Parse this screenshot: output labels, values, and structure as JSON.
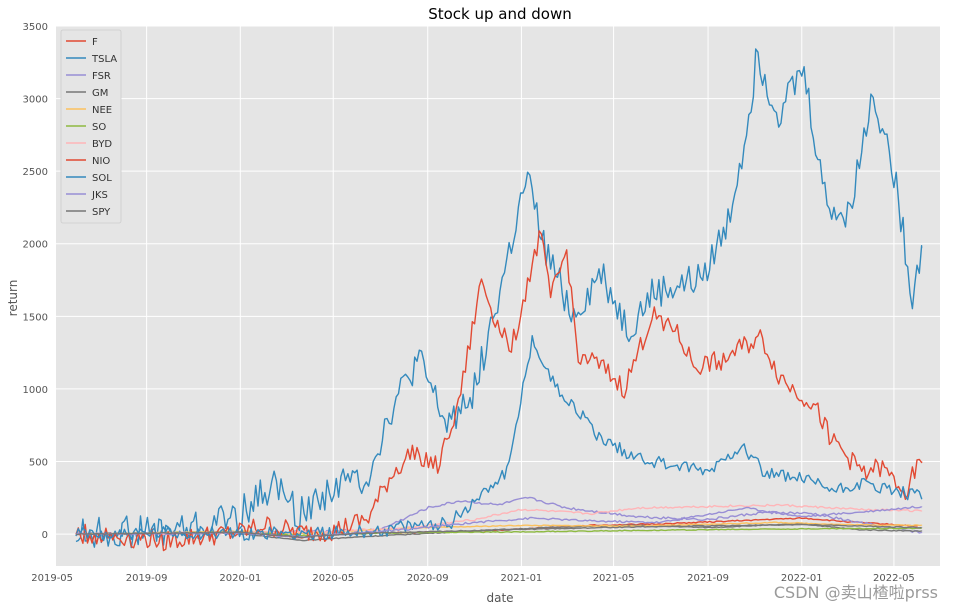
{
  "chart_data": {
    "type": "line",
    "title": "Stock up and down",
    "xlabel": "date",
    "ylabel": "return",
    "ylim": [
      -220,
      3500
    ],
    "yticks": [
      0,
      500,
      1000,
      1500,
      2000,
      2500,
      3000,
      3500
    ],
    "ytick_labels": [
      "0",
      "500",
      "1000",
      "1500",
      "2000",
      "2500",
      "3000",
      "3500"
    ],
    "xlim": [
      "2019-05-06",
      "2022-06-30"
    ],
    "xtick_labels": [
      "2019-05",
      "2019-09",
      "2020-01",
      "2020-05",
      "2020-09",
      "2021-01",
      "2021-05",
      "2021-09",
      "2022-01",
      "2022-05"
    ],
    "grid": true,
    "legend_position": "top-left",
    "series": [
      {
        "name": "F",
        "color": "#E24A33",
        "x": [
          "2019-06-01",
          "2019-09-01",
          "2020-01-01",
          "2020-03-20",
          "2020-05-01",
          "2020-08-01",
          "2020-11-01",
          "2021-01-01",
          "2021-04-01",
          "2021-07-01",
          "2021-10-01",
          "2022-01-01",
          "2022-03-01",
          "2022-06-01"
        ],
        "values": [
          0,
          5,
          15,
          -25,
          0,
          10,
          20,
          35,
          60,
          70,
          90,
          110,
          85,
          55
        ]
      },
      {
        "name": "TSLA",
        "color": "#348ABD",
        "x": [
          "2019-06-01",
          "2019-07-15",
          "2019-09-15",
          "2019-11-15",
          "2020-01-01",
          "2020-02-15",
          "2020-03-18",
          "2020-05-01",
          "2020-06-15",
          "2020-07-15",
          "2020-08-20",
          "2020-09-25",
          "2020-11-01",
          "2020-12-01",
          "2021-01-08",
          "2021-02-01",
          "2021-03-10",
          "2021-04-15",
          "2021-05-20",
          "2021-06-20",
          "2021-08-20",
          "2021-09-25",
          "2021-10-20",
          "2021-11-04",
          "2021-12-01",
          "2022-01-03",
          "2022-02-01",
          "2022-03-01",
          "2022-04-04",
          "2022-05-01",
          "2022-05-25",
          "2022-06-06"
        ],
        "values": [
          0,
          10,
          20,
          50,
          140,
          350,
          130,
          330,
          400,
          850,
          1200,
          750,
          1000,
          1600,
          2450,
          1950,
          1500,
          1800,
          1400,
          1650,
          1750,
          2100,
          2750,
          3300,
          2900,
          3200,
          2300,
          2150,
          3050,
          2500,
          1650,
          1970
        ]
      },
      {
        "name": "FSR",
        "color": "#988ED5",
        "x": [
          "2019-06-01",
          "2020-01-01",
          "2020-07-01",
          "2020-09-01",
          "2020-10-15",
          "2020-12-01",
          "2021-01-10",
          "2021-03-01",
          "2021-06-01",
          "2021-09-01",
          "2021-11-15",
          "2022-01-15",
          "2022-03-15",
          "2022-06-06"
        ],
        "values": [
          0,
          5,
          30,
          180,
          230,
          200,
          250,
          180,
          120,
          100,
          150,
          140,
          80,
          10
        ]
      },
      {
        "name": "GM",
        "color": "#777777",
        "x": [
          "2019-06-01",
          "2020-01-01",
          "2020-03-20",
          "2020-06-01",
          "2020-12-01",
          "2021-03-01",
          "2021-06-01",
          "2021-09-01",
          "2022-01-01",
          "2022-03-15",
          "2022-06-06"
        ],
        "values": [
          0,
          5,
          -45,
          -20,
          30,
          50,
          60,
          45,
          70,
          30,
          20
        ]
      },
      {
        "name": "NEE",
        "color": "#FBC15E",
        "x": [
          "2019-06-01",
          "2020-01-01",
          "2020-03-20",
          "2020-08-01",
          "2021-01-01",
          "2021-06-01",
          "2021-12-01",
          "2022-03-01",
          "2022-06-06"
        ],
        "values": [
          0,
          20,
          5,
          40,
          60,
          55,
          80,
          65,
          60
        ]
      },
      {
        "name": "SO",
        "color": "#8EBA42",
        "x": [
          "2019-06-01",
          "2020-01-01",
          "2020-03-20",
          "2020-08-01",
          "2021-01-01",
          "2021-06-01",
          "2021-12-01",
          "2022-06-06"
        ],
        "values": [
          0,
          15,
          -10,
          10,
          15,
          25,
          35,
          40
        ]
      },
      {
        "name": "BYD",
        "color": "#FFB5B8",
        "x": [
          "2019-06-01",
          "2020-01-01",
          "2020-05-01",
          "2020-08-01",
          "2020-11-01",
          "2021-01-01",
          "2021-04-01",
          "2021-06-01",
          "2021-09-01",
          "2021-12-01",
          "2022-03-15",
          "2022-06-06"
        ],
        "values": [
          0,
          10,
          20,
          40,
          100,
          170,
          140,
          180,
          190,
          200,
          170,
          160
        ]
      },
      {
        "name": "NIO",
        "color": "#E24A33",
        "x": [
          "2019-06-01",
          "2019-10-01",
          "2020-01-01",
          "2020-02-01",
          "2020-03-20",
          "2020-05-01",
          "2020-06-15",
          "2020-07-15",
          "2020-08-15",
          "2020-09-15",
          "2020-10-15",
          "2020-11-10",
          "2020-11-30",
          "2020-12-20",
          "2021-01-10",
          "2021-01-25",
          "2021-02-10",
          "2021-03-01",
          "2021-03-15",
          "2021-04-15",
          "2021-05-15",
          "2021-06-20",
          "2021-07-15",
          "2021-08-15",
          "2021-09-20",
          "2021-10-20",
          "2021-11-10",
          "2021-12-01",
          "2021-12-20",
          "2022-01-15",
          "2022-02-10",
          "2022-03-15",
          "2022-04-15",
          "2022-05-15",
          "2022-06-06"
        ],
        "values": [
          0,
          -45,
          10,
          60,
          5,
          20,
          100,
          400,
          580,
          450,
          1000,
          1750,
          1450,
          1300,
          1750,
          2050,
          1650,
          1950,
          1250,
          1150,
          1000,
          1500,
          1450,
          1150,
          1200,
          1300,
          1350,
          1100,
          1000,
          900,
          650,
          450,
          450,
          300,
          500
        ]
      },
      {
        "name": "SOL",
        "color": "#348ABD",
        "x": [
          "2019-06-01",
          "2020-01-01",
          "2020-06-01",
          "2020-10-01",
          "2020-11-15",
          "2020-12-15",
          "2021-01-15",
          "2021-02-10",
          "2021-03-15",
          "2021-04-15",
          "2021-05-20",
          "2021-06-20",
          "2021-09-01",
          "2021-10-15",
          "2021-11-15",
          "2022-01-01",
          "2022-02-15",
          "2022-03-15",
          "2022-04-20",
          "2022-06-06"
        ],
        "values": [
          0,
          5,
          10,
          80,
          300,
          450,
          1350,
          1050,
          850,
          650,
          560,
          500,
          430,
          620,
          420,
          380,
          300,
          350,
          310,
          250
        ]
      },
      {
        "name": "JKS",
        "color": "#988ED5",
        "x": [
          "2019-06-01",
          "2020-01-01",
          "2020-03-20",
          "2020-08-01",
          "2020-11-01",
          "2021-01-15",
          "2021-04-01",
          "2021-07-01",
          "2021-10-20",
          "2022-01-01",
          "2022-03-15",
          "2022-06-06"
        ],
        "values": [
          0,
          10,
          -20,
          30,
          80,
          110,
          90,
          80,
          180,
          120,
          150,
          190
        ]
      },
      {
        "name": "SPY",
        "color": "#777777",
        "x": [
          "2019-06-01",
          "2020-01-01",
          "2020-03-20",
          "2020-06-01",
          "2020-12-01",
          "2021-06-01",
          "2021-12-30",
          "2022-03-15",
          "2022-06-06"
        ],
        "values": [
          0,
          12,
          -22,
          5,
          28,
          50,
          65,
          55,
          45
        ]
      }
    ]
  },
  "watermark": "CSDN @卖山楂啦prss"
}
